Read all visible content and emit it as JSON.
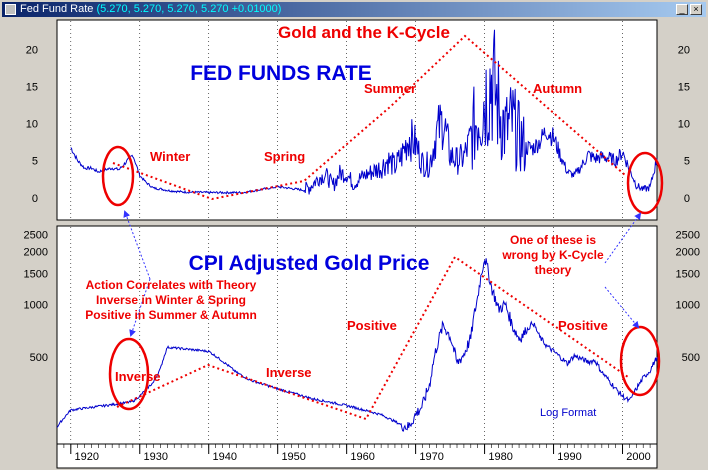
{
  "window": {
    "title": "Fed Fund Rate",
    "values": "(5.270, 5.270, 5.270, 5.270 +0.01000)"
  },
  "chart_data": [
    {
      "type": "line",
      "title": "Gold and the K-Cycle",
      "subtitle": "FED FUNDS RATE",
      "yticks": [
        0,
        5,
        10,
        15,
        20
      ],
      "ylim": [
        -3,
        24
      ],
      "xlim": [
        1918,
        2005
      ],
      "series": [
        {
          "x": [
            1920,
            1921,
            1922,
            1923,
            1924,
            1925,
            1926,
            1927,
            1928,
            1929,
            1930,
            1931,
            1932,
            1933,
            1934,
            1936,
            1940,
            1945,
            1950,
            1954,
            1955,
            1956,
            1957,
            1958,
            1959,
            1960,
            1961,
            1962,
            1963,
            1965,
            1966,
            1967,
            1968,
            1969,
            1970,
            1971,
            1972,
            1973,
            1974,
            1975,
            1976,
            1977,
            1978,
            1979,
            1980,
            1981,
            1982,
            1983,
            1984,
            1985,
            1986,
            1987,
            1988,
            1989,
            1990,
            1991,
            1992,
            1993,
            1994,
            1995,
            1996,
            1997,
            1998,
            1999,
            2000,
            2001,
            2002,
            2003,
            2004,
            2005
          ],
          "values": [
            6.8,
            5.0,
            4.0,
            4.0,
            3.5,
            3.8,
            4.0,
            3.8,
            4.8,
            5.8,
            3.0,
            2.0,
            1.3,
            1.2,
            1.0,
            0.8,
            0.7,
            0.7,
            1.5,
            1.0,
            1.8,
            2.7,
            3.1,
            1.6,
            3.3,
            3.2,
            1.9,
            2.7,
            3.2,
            4.1,
            5.1,
            4.2,
            5.7,
            8.2,
            7.2,
            4.7,
            4.4,
            8.7,
            10.5,
            5.8,
            5.0,
            5.5,
            7.9,
            11.2,
            13.4,
            16.4,
            12.3,
            9.1,
            10.2,
            8.1,
            6.8,
            6.7,
            7.6,
            9.2,
            8.1,
            5.7,
            3.5,
            3.0,
            4.2,
            5.8,
            5.3,
            5.5,
            5.4,
            5.0,
            6.2,
            3.9,
            1.7,
            1.1,
            1.4,
            5.3
          ]
        }
      ],
      "annotations": [
        "Winter",
        "Spring",
        "Summer",
        "Autumn"
      ]
    },
    {
      "type": "line",
      "title": "CPI Adjusted Gold Price",
      "scale": "log",
      "note": "Log Format",
      "yticks": [
        500,
        1000,
        1500,
        2000,
        2500
      ],
      "ylim": [
        160,
        2800
      ],
      "xlim": [
        1918,
        2005
      ],
      "xticks": [
        1920,
        1930,
        1940,
        1950,
        1960,
        1970,
        1980,
        1990,
        2000
      ],
      "series": [
        {
          "x": [
            1918,
            1920,
            1925,
            1928,
            1929,
            1930,
            1931,
            1932,
            1933,
            1934,
            1936,
            1940,
            1944,
            1946,
            1950,
            1955,
            1960,
            1965,
            1968,
            1969,
            1970,
            1971,
            1972,
            1973,
            1974,
            1975,
            1976,
            1977,
            1978,
            1979,
            1980,
            1981,
            1982,
            1983,
            1984,
            1985,
            1986,
            1987,
            1988,
            1989,
            1990,
            1991,
            1992,
            1993,
            1994,
            1995,
            1996,
            1997,
            1998,
            1999,
            2000,
            2001,
            2002,
            2003,
            2004,
            2005
          ],
          "values": [
            200,
            250,
            265,
            275,
            280,
            300,
            330,
            360,
            430,
            570,
            560,
            540,
            410,
            370,
            330,
            290,
            265,
            235,
            205,
            200,
            235,
            265,
            345,
            560,
            760,
            660,
            460,
            520,
            640,
            1100,
            1850,
            1250,
            940,
            1000,
            760,
            640,
            700,
            790,
            650,
            580,
            540,
            500,
            460,
            510,
            490,
            470,
            480,
            410,
            370,
            330,
            300,
            280,
            330,
            380,
            420,
            500
          ]
        }
      ],
      "annotations": [
        "Inverse",
        "Inverse",
        "Positive",
        "Positive"
      ]
    }
  ],
  "callouts": {
    "left": [
      "Action Correlates with Theory",
      "Inverse in Winter & Spring",
      "Positive in Summer & Autumn"
    ],
    "right": [
      "One of these is",
      "wrong by K-Cycle",
      "theory"
    ]
  }
}
